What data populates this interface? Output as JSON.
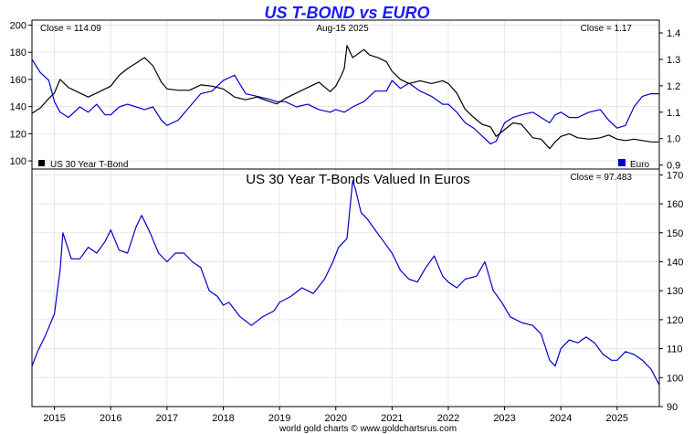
{
  "title": "US T-BOND vs EURO",
  "footer": "world gold charts © www.goldchartsrus.com",
  "colors": {
    "title": "#1a1aff",
    "tbond": "#000000",
    "euro": "#0000cc",
    "grid": "#e6e6e6",
    "frame": "#000000"
  },
  "x_axis": {
    "years": [
      "2015",
      "2016",
      "2017",
      "2018",
      "2019",
      "2020",
      "2021",
      "2022",
      "2023",
      "2024",
      "2025"
    ],
    "range": [
      2014.6,
      2025.75
    ]
  },
  "top_panel": {
    "date_label": "Aug-15  2025",
    "left_close_label": "Close = 114.09",
    "right_close_label": "Close = 1.17",
    "left_axis": {
      "range": [
        94,
        203
      ],
      "ticks": [
        "100",
        "120",
        "140",
        "160",
        "180",
        "200"
      ]
    },
    "right_axis": {
      "range": [
        0.885,
        1.445
      ],
      "ticks": [
        "0.9",
        "1.0",
        "1.1",
        "1.2",
        "1.3",
        "1.4"
      ]
    },
    "legend": [
      {
        "label": "US 30 Year T-Bond",
        "color": "#000000",
        "position": "bottom-left"
      },
      {
        "label": "Euro",
        "color": "#0000cc",
        "position": "bottom-right"
      }
    ]
  },
  "bottom_panel": {
    "title": "US 30 Year T-Bonds Valued In Euros",
    "close_label": "Close = 97.483",
    "right_axis": {
      "range": [
        90,
        172
      ],
      "ticks": [
        "90",
        "100",
        "110",
        "120",
        "130",
        "140",
        "150",
        "160",
        "170"
      ]
    }
  },
  "chart_data": [
    {
      "type": "line",
      "title": "US T-BOND vs EURO",
      "series": [
        {
          "name": "US 30 Year T-Bond",
          "axis": "left",
          "x": [
            2014.6,
            2014.75,
            2014.9,
            2015.0,
            2015.1,
            2015.25,
            2015.45,
            2015.6,
            2015.75,
            2015.9,
            2016.0,
            2016.15,
            2016.3,
            2016.45,
            2016.6,
            2016.75,
            2016.9,
            2017.0,
            2017.2,
            2017.4,
            2017.6,
            2017.8,
            2018.0,
            2018.2,
            2018.4,
            2018.6,
            2018.8,
            2018.95,
            2019.1,
            2019.3,
            2019.5,
            2019.7,
            2019.9,
            2020.0,
            2020.1,
            2020.15,
            2020.2,
            2020.3,
            2020.5,
            2020.6,
            2020.75,
            2020.9,
            2021.0,
            2021.15,
            2021.3,
            2021.5,
            2021.7,
            2021.9,
            2022.0,
            2022.15,
            2022.3,
            2022.45,
            2022.6,
            2022.75,
            2022.85,
            2023.0,
            2023.15,
            2023.3,
            2023.5,
            2023.65,
            2023.8,
            2023.9,
            2024.0,
            2024.15,
            2024.3,
            2024.5,
            2024.7,
            2024.85,
            2025.0,
            2025.15,
            2025.3,
            2025.45,
            2025.6,
            2025.75
          ],
          "values": [
            135,
            139,
            146,
            150,
            160,
            154,
            150,
            147,
            150,
            153,
            155,
            163,
            168,
            172,
            176,
            170,
            158,
            153,
            152,
            152,
            156,
            155,
            153,
            147,
            145,
            147,
            144,
            142,
            146,
            150,
            154,
            158,
            151,
            155,
            163,
            168,
            185,
            176,
            182,
            178,
            176,
            173,
            166,
            160,
            157,
            159,
            157,
            159,
            157,
            150,
            138,
            132,
            127,
            125,
            118,
            123,
            128,
            127,
            117,
            116,
            109,
            114,
            118,
            120,
            117,
            116,
            117,
            119,
            116,
            115,
            116,
            115,
            114,
            114
          ]
        },
        {
          "name": "Euro",
          "axis": "right",
          "x": [
            2014.6,
            2014.75,
            2014.9,
            2015.0,
            2015.1,
            2015.25,
            2015.45,
            2015.6,
            2015.75,
            2015.9,
            2016.0,
            2016.15,
            2016.3,
            2016.45,
            2016.6,
            2016.75,
            2016.9,
            2017.0,
            2017.2,
            2017.4,
            2017.6,
            2017.8,
            2018.0,
            2018.2,
            2018.4,
            2018.6,
            2018.8,
            2018.95,
            2019.1,
            2019.3,
            2019.5,
            2019.7,
            2019.9,
            2020.0,
            2020.15,
            2020.3,
            2020.5,
            2020.7,
            2020.9,
            2021.0,
            2021.15,
            2021.3,
            2021.5,
            2021.7,
            2021.9,
            2022.0,
            2022.15,
            2022.3,
            2022.45,
            2022.6,
            2022.75,
            2022.85,
            2023.0,
            2023.15,
            2023.3,
            2023.5,
            2023.65,
            2023.8,
            2023.9,
            2024.0,
            2024.15,
            2024.3,
            2024.5,
            2024.7,
            2024.85,
            2025.0,
            2025.15,
            2025.3,
            2025.45,
            2025.6,
            2025.75
          ],
          "values": [
            1.3,
            1.25,
            1.22,
            1.14,
            1.1,
            1.08,
            1.12,
            1.1,
            1.13,
            1.09,
            1.09,
            1.12,
            1.13,
            1.12,
            1.11,
            1.12,
            1.07,
            1.05,
            1.07,
            1.12,
            1.17,
            1.18,
            1.22,
            1.24,
            1.17,
            1.16,
            1.15,
            1.14,
            1.14,
            1.12,
            1.13,
            1.11,
            1.1,
            1.11,
            1.1,
            1.12,
            1.14,
            1.18,
            1.18,
            1.22,
            1.19,
            1.21,
            1.18,
            1.16,
            1.13,
            1.13,
            1.1,
            1.06,
            1.04,
            1.01,
            0.98,
            0.99,
            1.06,
            1.08,
            1.09,
            1.1,
            1.08,
            1.06,
            1.09,
            1.1,
            1.08,
            1.08,
            1.1,
            1.11,
            1.07,
            1.04,
            1.05,
            1.12,
            1.16,
            1.17,
            1.17
          ]
        }
      ],
      "left_ylim": [
        94,
        203
      ],
      "right_ylim": [
        0.885,
        1.445
      ],
      "grid": true,
      "legend": "bottom"
    },
    {
      "type": "line",
      "title": "US 30 Year T-Bonds Valued In Euros",
      "series": [
        {
          "x": [
            2014.6,
            2014.7,
            2014.85,
            2015.0,
            2015.1,
            2015.15,
            2015.3,
            2015.45,
            2015.6,
            2015.75,
            2015.9,
            2016.0,
            2016.15,
            2016.3,
            2016.45,
            2016.55,
            2016.7,
            2016.85,
            2017.0,
            2017.15,
            2017.3,
            2017.45,
            2017.6,
            2017.75,
            2017.9,
            2018.0,
            2018.1,
            2018.3,
            2018.5,
            2018.7,
            2018.9,
            2019.0,
            2019.2,
            2019.4,
            2019.6,
            2019.8,
            2019.95,
            2020.05,
            2020.2,
            2020.3,
            2020.35,
            2020.45,
            2020.55,
            2020.7,
            2020.85,
            2021.0,
            2021.15,
            2021.3,
            2021.45,
            2021.6,
            2021.75,
            2021.9,
            2022.0,
            2022.15,
            2022.3,
            2022.5,
            2022.65,
            2022.8,
            2022.95,
            2023.1,
            2023.3,
            2023.5,
            2023.65,
            2023.8,
            2023.9,
            2024.0,
            2024.15,
            2024.3,
            2024.45,
            2024.6,
            2024.75,
            2024.9,
            2025.0,
            2025.15,
            2025.3,
            2025.45,
            2025.6,
            2025.75
          ],
          "values": [
            104,
            109,
            115,
            122,
            137,
            150,
            141,
            141,
            145,
            143,
            147,
            151,
            144,
            143,
            152,
            156,
            150,
            143,
            140,
            143,
            143,
            140,
            138,
            130,
            128,
            125,
            126,
            121,
            118,
            121,
            123,
            126,
            128,
            131,
            129,
            134,
            140,
            145,
            148,
            168,
            165,
            157,
            155,
            151,
            147,
            143,
            137,
            134,
            133,
            138,
            142,
            135,
            133,
            131,
            134,
            135,
            140,
            130,
            126,
            121,
            119,
            118,
            115,
            106,
            104,
            110,
            113,
            112,
            114,
            112,
            108,
            106,
            106,
            109,
            108,
            106,
            103,
            97.5
          ]
        }
      ],
      "ylim": [
        90,
        172
      ],
      "grid": true
    }
  ]
}
